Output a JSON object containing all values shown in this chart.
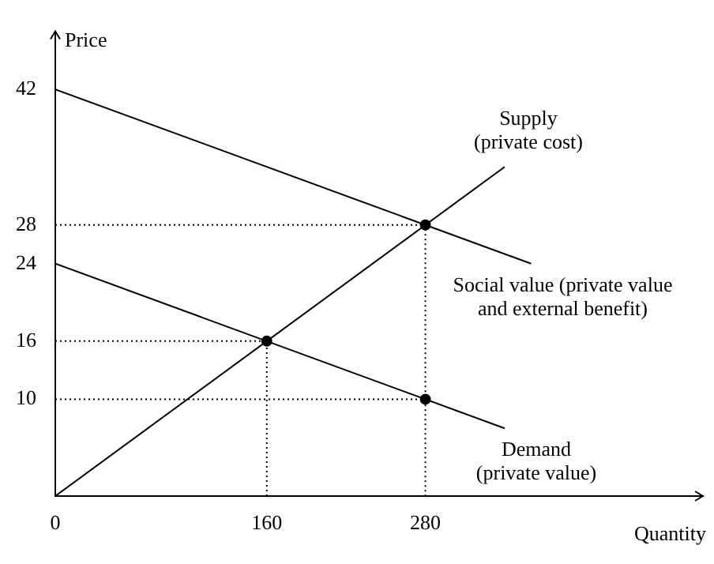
{
  "chart_data": {
    "type": "line",
    "xlabel": "Quantity",
    "ylabel": "Price",
    "xlim": [
      0,
      490
    ],
    "ylim": [
      0,
      48
    ],
    "xticks": [
      0,
      160,
      280
    ],
    "yticks": [
      10,
      16,
      24,
      28,
      42
    ],
    "series": [
      {
        "name": "Supply\n(private cost)",
        "color": "#000000",
        "x": [
          0,
          340
        ],
        "values": [
          0,
          34
        ]
      },
      {
        "name": "Social value (private value\nand external benefit)",
        "color": "#000000",
        "x": [
          0,
          360
        ],
        "values": [
          42,
          24
        ]
      },
      {
        "name": "Demand\n(private value)",
        "color": "#000000",
        "x": [
          0,
          340
        ],
        "values": [
          24,
          7
        ]
      },
      {
        "color": "#000000",
        "line_style": "dotted",
        "x": [
          0,
          280,
          280
        ],
        "values": [
          28,
          28,
          0
        ]
      },
      {
        "color": "#000000",
        "line_style": "dotted",
        "x": [
          0,
          160,
          160
        ],
        "values": [
          16,
          16,
          0
        ]
      },
      {
        "color": "#000000",
        "line_style": "dotted",
        "x": [
          0,
          280
        ],
        "values": [
          10,
          10
        ]
      },
      {
        "type": "scatter",
        "color": "#000000",
        "marker": "circle",
        "x": [
          160,
          280,
          280
        ],
        "values": [
          16,
          28,
          10
        ]
      }
    ]
  }
}
